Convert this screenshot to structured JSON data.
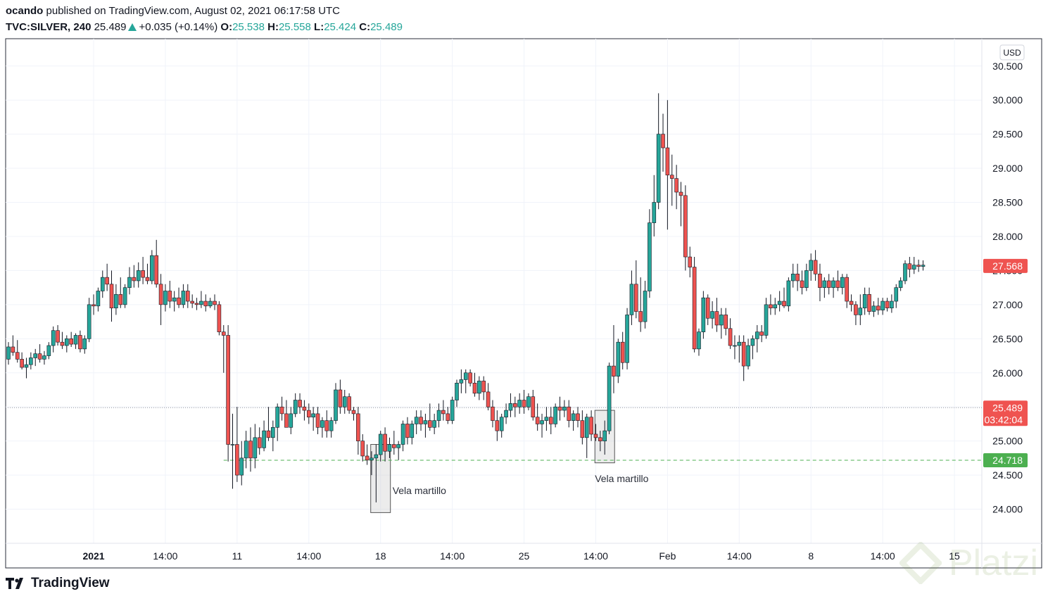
{
  "header": {
    "author": "ocando",
    "published_text": "published on TradingView.com, August 02, 2021 06:17:58 UTC",
    "symbol": "TVC:SILVER, 240",
    "last": "25.489",
    "change": "+0.035 (+0.14%)",
    "o_label": "O:",
    "o_value": "25.538",
    "h_label": "H:",
    "h_value": "25.558",
    "l_label": "L:",
    "l_value": "25.424",
    "c_label": "C:",
    "c_value": "25.489"
  },
  "footer": {
    "brand": "TradingView",
    "watermark": "Platzi"
  },
  "colors": {
    "up": "#26a69a",
    "down": "#ef5350",
    "price_label": "#ef5350",
    "support_label": "#4caf50",
    "grid": "#f0f3fa",
    "axis_text": "#131722"
  },
  "chart_data": {
    "type": "candlestick",
    "currency": "USD",
    "ylim": [
      23.5,
      30.9
    ],
    "y_ticks": [
      "24.000",
      "24.500",
      "25.000",
      "25.500",
      "26.000",
      "26.500",
      "27.000",
      "27.500",
      "28.000",
      "28.500",
      "29.000",
      "29.500",
      "30.000",
      "30.500"
    ],
    "x_ticks": [
      {
        "label": "2021",
        "bold": true,
        "bar": 19
      },
      {
        "label": "14:00",
        "bold": false,
        "bar": 35
      },
      {
        "label": "11",
        "bold": false,
        "bar": 51
      },
      {
        "label": "14:00",
        "bold": false,
        "bar": 67
      },
      {
        "label": "18",
        "bold": false,
        "bar": 83
      },
      {
        "label": "14:00",
        "bold": false,
        "bar": 99
      },
      {
        "label": "25",
        "bold": false,
        "bar": 115
      },
      {
        "label": "14:00",
        "bold": false,
        "bar": 131
      },
      {
        "label": "Feb",
        "bold": false,
        "bar": 147
      },
      {
        "label": "14:00",
        "bold": false,
        "bar": 163
      },
      {
        "label": "8",
        "bold": false,
        "bar": 179
      },
      {
        "label": "14:00",
        "bold": false,
        "bar": 195
      },
      {
        "label": "15",
        "bold": false,
        "bar": 211
      }
    ],
    "current_price": {
      "value": 25.489,
      "label": "25.489",
      "countdown": "03:42:04"
    },
    "last_close_label": {
      "value": 27.568,
      "label": "27.568"
    },
    "support_line": {
      "value": 24.718,
      "label": "24.718"
    },
    "annotations": [
      {
        "text": "Vela martillo",
        "bar": 83,
        "low": 23.95,
        "high": 24.95
      },
      {
        "text": "Vela martillo",
        "bar": 133,
        "low": 24.68,
        "high": 25.45
      }
    ],
    "ohlc": [
      [
        26.2,
        26.45,
        26.12,
        26.38
      ],
      [
        26.38,
        26.55,
        26.25,
        26.3
      ],
      [
        26.3,
        26.48,
        26.15,
        26.2
      ],
      [
        26.2,
        26.3,
        26.05,
        26.08
      ],
      [
        26.08,
        26.22,
        25.92,
        26.12
      ],
      [
        26.12,
        26.3,
        26.05,
        26.22
      ],
      [
        26.22,
        26.35,
        26.1,
        26.28
      ],
      [
        26.28,
        26.42,
        26.15,
        26.2
      ],
      [
        26.2,
        26.32,
        26.12,
        26.25
      ],
      [
        26.25,
        26.45,
        26.2,
        26.4
      ],
      [
        26.4,
        26.68,
        26.3,
        26.62
      ],
      [
        26.62,
        26.7,
        26.4,
        26.45
      ],
      [
        26.45,
        26.6,
        26.35,
        26.4
      ],
      [
        26.4,
        26.55,
        26.3,
        26.5
      ],
      [
        26.5,
        26.6,
        26.38,
        26.42
      ],
      [
        26.42,
        26.58,
        26.35,
        26.55
      ],
      [
        26.55,
        26.62,
        26.3,
        26.35
      ],
      [
        26.35,
        26.55,
        26.28,
        26.5
      ],
      [
        26.5,
        27.1,
        26.45,
        27.0
      ],
      [
        27.0,
        27.15,
        26.85,
        26.98
      ],
      [
        26.98,
        27.25,
        26.9,
        27.2
      ],
      [
        27.2,
        27.5,
        27.1,
        27.4
      ],
      [
        27.4,
        27.6,
        27.2,
        27.3
      ],
      [
        27.3,
        27.5,
        26.75,
        26.95
      ],
      [
        26.95,
        27.3,
        26.85,
        27.15
      ],
      [
        27.15,
        27.4,
        26.95,
        27.0
      ],
      [
        27.0,
        27.3,
        26.95,
        27.25
      ],
      [
        27.25,
        27.55,
        27.15,
        27.4
      ],
      [
        27.4,
        27.58,
        27.25,
        27.35
      ],
      [
        27.35,
        27.62,
        27.25,
        27.5
      ],
      [
        27.5,
        27.7,
        27.3,
        27.4
      ],
      [
        27.4,
        27.6,
        27.3,
        27.35
      ],
      [
        27.35,
        27.8,
        27.3,
        27.72
      ],
      [
        27.72,
        27.95,
        27.25,
        27.3
      ],
      [
        27.3,
        27.45,
        26.7,
        27.0
      ],
      [
        27.0,
        27.3,
        26.9,
        27.2
      ],
      [
        27.2,
        27.35,
        26.95,
        27.05
      ],
      [
        27.05,
        27.2,
        26.9,
        27.1
      ],
      [
        27.1,
        27.25,
        26.95,
        27.0
      ],
      [
        27.0,
        27.3,
        26.95,
        27.2
      ],
      [
        27.2,
        27.3,
        26.95,
        27.05
      ],
      [
        27.05,
        27.15,
        26.95,
        27.02
      ],
      [
        27.02,
        27.1,
        26.92,
        27.0
      ],
      [
        27.0,
        27.2,
        26.95,
        27.05
      ],
      [
        27.05,
        27.15,
        26.9,
        26.98
      ],
      [
        26.98,
        27.1,
        26.95,
        27.05
      ],
      [
        27.05,
        27.15,
        26.92,
        27.0
      ],
      [
        27.0,
        27.05,
        26.55,
        26.6
      ],
      [
        26.6,
        26.7,
        26.0,
        26.55
      ],
      [
        26.55,
        26.7,
        24.7,
        24.95
      ],
      [
        24.95,
        25.4,
        24.3,
        24.95
      ],
      [
        24.95,
        25.5,
        24.4,
        24.5
      ],
      [
        24.5,
        25.0,
        24.35,
        24.75
      ],
      [
        24.75,
        25.15,
        24.6,
        25.0
      ],
      [
        25.0,
        25.2,
        24.55,
        24.75
      ],
      [
        24.75,
        25.25,
        24.6,
        25.05
      ],
      [
        25.05,
        25.2,
        24.8,
        24.9
      ],
      [
        24.9,
        25.3,
        24.85,
        25.15
      ],
      [
        25.15,
        25.5,
        25.0,
        25.05
      ],
      [
        25.05,
        25.3,
        24.85,
        25.2
      ],
      [
        25.2,
        25.55,
        25.0,
        25.5
      ],
      [
        25.5,
        25.65,
        25.3,
        25.4
      ],
      [
        25.4,
        25.6,
        25.25,
        25.2
      ],
      [
        25.2,
        25.5,
        25.1,
        25.4
      ],
      [
        25.4,
        25.7,
        25.35,
        25.6
      ],
      [
        25.6,
        25.7,
        25.4,
        25.5
      ],
      [
        25.5,
        25.6,
        25.3,
        25.45
      ],
      [
        25.45,
        25.55,
        25.25,
        25.35
      ],
      [
        25.35,
        25.5,
        25.15,
        25.4
      ],
      [
        25.4,
        25.5,
        25.1,
        25.2
      ],
      [
        25.2,
        25.35,
        25.05,
        25.3
      ],
      [
        25.3,
        25.45,
        25.05,
        25.15
      ],
      [
        25.15,
        25.35,
        25.05,
        25.3
      ],
      [
        25.3,
        25.85,
        25.25,
        25.75
      ],
      [
        25.75,
        25.9,
        25.4,
        25.5
      ],
      [
        25.5,
        25.75,
        25.4,
        25.65
      ],
      [
        25.65,
        25.7,
        25.4,
        25.45
      ],
      [
        25.45,
        25.5,
        25.3,
        25.4
      ],
      [
        25.4,
        25.5,
        24.8,
        25.0
      ],
      [
        25.0,
        25.1,
        24.7,
        24.78
      ],
      [
        24.78,
        24.95,
        24.65,
        24.72
      ],
      [
        24.72,
        24.85,
        24.5,
        24.75
      ],
      [
        24.75,
        24.95,
        24.1,
        24.8
      ],
      [
        24.8,
        25.15,
        24.7,
        25.1
      ],
      [
        25.1,
        25.2,
        24.7,
        24.85
      ],
      [
        24.85,
        25.05,
        24.75,
        24.95
      ],
      [
        24.95,
        25.15,
        24.8,
        24.9
      ],
      [
        24.9,
        25.0,
        24.72,
        24.95
      ],
      [
        24.95,
        25.3,
        24.85,
        25.25
      ],
      [
        25.25,
        25.35,
        24.95,
        25.05
      ],
      [
        25.05,
        25.3,
        24.95,
        25.25
      ],
      [
        25.25,
        25.45,
        25.1,
        25.35
      ],
      [
        25.35,
        25.45,
        25.15,
        25.25
      ],
      [
        25.25,
        25.4,
        25.05,
        25.3
      ],
      [
        25.3,
        25.55,
        25.15,
        25.2
      ],
      [
        25.2,
        25.4,
        25.1,
        25.3
      ],
      [
        25.3,
        25.55,
        25.2,
        25.45
      ],
      [
        25.45,
        25.6,
        25.3,
        25.4
      ],
      [
        25.4,
        25.5,
        25.25,
        25.3
      ],
      [
        25.3,
        25.65,
        25.25,
        25.6
      ],
      [
        25.6,
        25.9,
        25.5,
        25.85
      ],
      [
        25.85,
        26.05,
        25.7,
        25.9
      ],
      [
        25.9,
        26.05,
        25.7,
        26.0
      ],
      [
        26.0,
        26.05,
        25.8,
        25.85
      ],
      [
        25.85,
        26.0,
        25.65,
        25.7
      ],
      [
        25.7,
        25.95,
        25.6,
        25.88
      ],
      [
        25.88,
        25.95,
        25.6,
        25.72
      ],
      [
        25.72,
        25.85,
        25.45,
        25.5
      ],
      [
        25.5,
        25.6,
        25.2,
        25.3
      ],
      [
        25.3,
        25.45,
        25.0,
        25.15
      ],
      [
        25.15,
        25.4,
        25.05,
        25.35
      ],
      [
        25.35,
        25.55,
        25.25,
        25.45
      ],
      [
        25.45,
        25.7,
        25.35,
        25.55
      ],
      [
        25.55,
        25.65,
        25.35,
        25.5
      ],
      [
        25.5,
        25.7,
        25.4,
        25.6
      ],
      [
        25.6,
        25.75,
        25.4,
        25.5
      ],
      [
        25.5,
        25.7,
        25.45,
        25.65
      ],
      [
        25.65,
        25.75,
        25.3,
        25.35
      ],
      [
        25.35,
        25.55,
        25.15,
        25.25
      ],
      [
        25.25,
        25.4,
        25.05,
        25.3
      ],
      [
        25.3,
        25.5,
        25.15,
        25.35
      ],
      [
        25.35,
        25.5,
        25.1,
        25.25
      ],
      [
        25.25,
        25.55,
        25.2,
        25.5
      ],
      [
        25.5,
        25.65,
        25.3,
        25.45
      ],
      [
        25.45,
        25.6,
        25.35,
        25.5
      ],
      [
        25.5,
        25.6,
        25.2,
        25.3
      ],
      [
        25.3,
        25.45,
        25.15,
        25.4
      ],
      [
        25.4,
        25.5,
        25.2,
        25.3
      ],
      [
        25.3,
        25.45,
        24.95,
        25.05
      ],
      [
        25.05,
        25.4,
        24.75,
        25.35
      ],
      [
        25.35,
        25.45,
        25.0,
        25.1
      ],
      [
        25.1,
        25.25,
        25.0,
        25.05
      ],
      [
        25.05,
        25.15,
        24.85,
        25.0
      ],
      [
        25.0,
        25.3,
        24.8,
        25.15
      ],
      [
        25.15,
        26.15,
        25.1,
        26.1
      ],
      [
        26.1,
        26.7,
        25.7,
        25.95
      ],
      [
        25.95,
        26.5,
        25.85,
        26.45
      ],
      [
        26.45,
        26.6,
        26.05,
        26.15
      ],
      [
        26.15,
        26.95,
        26.05,
        26.85
      ],
      [
        26.85,
        27.5,
        26.7,
        27.3
      ],
      [
        27.3,
        27.65,
        26.8,
        26.9
      ],
      [
        26.9,
        27.4,
        26.6,
        26.75
      ],
      [
        26.75,
        27.35,
        26.65,
        27.2
      ],
      [
        27.2,
        28.4,
        27.1,
        28.2
      ],
      [
        28.2,
        28.9,
        28.0,
        28.5
      ],
      [
        28.5,
        30.1,
        28.4,
        29.5
      ],
      [
        29.5,
        29.8,
        28.95,
        29.3
      ],
      [
        29.3,
        30.0,
        28.1,
        28.9
      ],
      [
        28.9,
        29.2,
        28.45,
        28.85
      ],
      [
        28.85,
        29.05,
        28.4,
        28.65
      ],
      [
        28.65,
        28.8,
        28.15,
        28.6
      ],
      [
        28.6,
        28.75,
        27.5,
        27.7
      ],
      [
        27.7,
        27.85,
        27.4,
        27.55
      ],
      [
        27.55,
        27.7,
        26.3,
        26.35
      ],
      [
        26.35,
        26.65,
        26.25,
        26.6
      ],
      [
        26.6,
        27.2,
        26.5,
        27.1
      ],
      [
        27.1,
        27.15,
        26.7,
        26.8
      ],
      [
        26.8,
        27.05,
        26.65,
        26.9
      ],
      [
        26.9,
        27.1,
        26.6,
        26.7
      ],
      [
        26.7,
        26.95,
        26.5,
        26.85
      ],
      [
        26.85,
        26.95,
        26.55,
        26.65
      ],
      [
        26.65,
        26.8,
        26.35,
        26.4
      ],
      [
        26.4,
        26.55,
        26.2,
        26.4
      ],
      [
        26.4,
        26.55,
        26.15,
        26.45
      ],
      [
        26.45,
        26.55,
        25.88,
        26.1
      ],
      [
        26.1,
        26.5,
        26.05,
        26.4
      ],
      [
        26.4,
        26.55,
        26.2,
        26.5
      ],
      [
        26.5,
        26.7,
        26.3,
        26.6
      ],
      [
        26.6,
        26.7,
        26.45,
        26.55
      ],
      [
        26.55,
        27.1,
        26.5,
        27.0
      ],
      [
        27.0,
        27.15,
        26.85,
        26.95
      ],
      [
        26.95,
        27.1,
        26.85,
        27.0
      ],
      [
        27.0,
        27.2,
        26.9,
        27.05
      ],
      [
        27.05,
        27.25,
        26.95,
        26.98
      ],
      [
        26.98,
        27.4,
        26.9,
        27.35
      ],
      [
        27.35,
        27.6,
        27.25,
        27.45
      ],
      [
        27.45,
        27.6,
        27.2,
        27.35
      ],
      [
        27.35,
        27.5,
        27.15,
        27.25
      ],
      [
        27.25,
        27.6,
        27.2,
        27.5
      ],
      [
        27.5,
        27.75,
        27.35,
        27.65
      ],
      [
        27.65,
        27.8,
        27.35,
        27.45
      ],
      [
        27.45,
        27.6,
        27.05,
        27.25
      ],
      [
        27.25,
        27.4,
        27.1,
        27.35
      ],
      [
        27.35,
        27.45,
        27.15,
        27.25
      ],
      [
        27.25,
        27.4,
        27.1,
        27.35
      ],
      [
        27.35,
        27.5,
        27.2,
        27.25
      ],
      [
        27.25,
        27.45,
        27.15,
        27.4
      ],
      [
        27.4,
        27.45,
        26.95,
        27.05
      ],
      [
        27.05,
        27.15,
        26.9,
        27.0
      ],
      [
        27.0,
        27.05,
        26.7,
        26.85
      ],
      [
        26.85,
        27.15,
        26.7,
        26.95
      ],
      [
        26.95,
        27.25,
        26.85,
        27.15
      ],
      [
        27.15,
        27.25,
        26.85,
        26.9
      ],
      [
        26.9,
        27.05,
        26.82,
        26.98
      ],
      [
        26.98,
        27.1,
        26.85,
        26.92
      ],
      [
        26.92,
        27.1,
        26.85,
        27.05
      ],
      [
        27.05,
        27.1,
        26.9,
        26.95
      ],
      [
        26.95,
        27.15,
        26.88,
        27.05
      ],
      [
        27.05,
        27.3,
        26.95,
        27.25
      ],
      [
        27.25,
        27.4,
        27.2,
        27.35
      ],
      [
        27.35,
        27.65,
        27.3,
        27.6
      ],
      [
        27.6,
        27.7,
        27.4,
        27.52
      ],
      [
        27.52,
        27.7,
        27.45,
        27.58
      ],
      [
        27.58,
        27.66,
        27.48,
        27.56
      ],
      [
        27.56,
        27.65,
        27.5,
        27.58
      ]
    ]
  }
}
